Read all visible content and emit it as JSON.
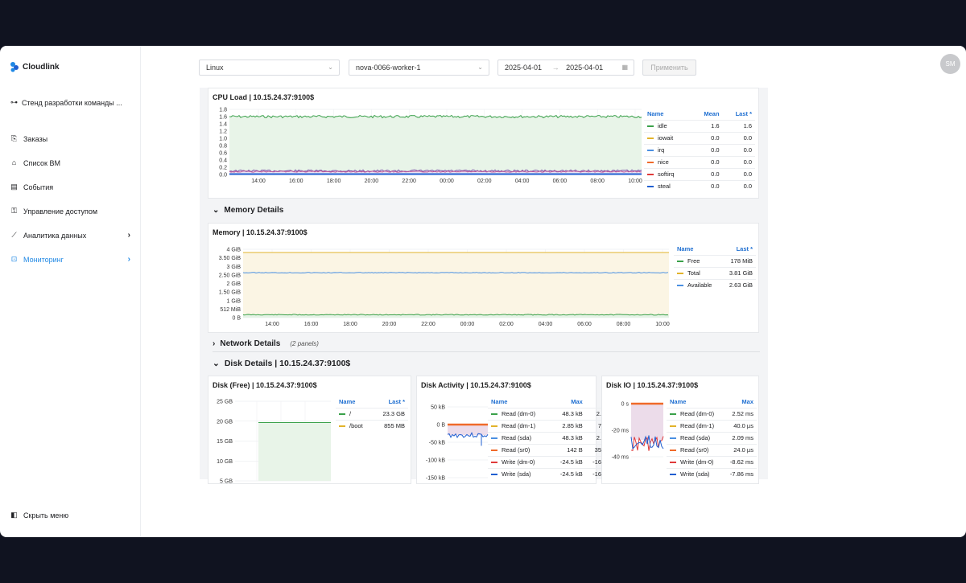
{
  "brand": {
    "name": "Cloudlink"
  },
  "project": {
    "name": "Стенд разработки команды ..."
  },
  "nav": [
    {
      "label": "Заказы",
      "icon": "orders-icon"
    },
    {
      "label": "Список ВМ",
      "icon": "vm-list-icon"
    },
    {
      "label": "События",
      "icon": "events-icon"
    },
    {
      "label": "Управление доступом",
      "icon": "access-icon"
    },
    {
      "label": "Аналитика данных",
      "icon": "analytics-icon",
      "chevron": "›"
    },
    {
      "label": "Мониторинг",
      "icon": "monitoring-icon",
      "chevron": "›",
      "active": true
    }
  ],
  "hide_menu": "Скрыть меню",
  "user": {
    "initials": "SM"
  },
  "filters": {
    "os": "Linux",
    "host": "nova-0066-worker-1",
    "date_from": "2025-04-01",
    "date_arrow": "→",
    "date_to": "2025-04-01",
    "apply": "Применить"
  },
  "x_ticks": [
    "14:00",
    "16:00",
    "18:00",
    "20:00",
    "22:00",
    "00:00",
    "02:00",
    "04:00",
    "06:00",
    "08:00",
    "10:00"
  ],
  "cpu": {
    "title": "CPU Load | 10.15.24.37:9100$",
    "headers": [
      "Name",
      "Mean",
      "Last *"
    ],
    "rows": [
      {
        "name": "idle",
        "mean": "1.6",
        "last": "1.6",
        "color": "#3aa14a"
      },
      {
        "name": "iowait",
        "mean": "0.0",
        "last": "0.0",
        "color": "#e2b32b"
      },
      {
        "name": "irq",
        "mean": "0.0",
        "last": "0.0",
        "color": "#4a90e2"
      },
      {
        "name": "nice",
        "mean": "0.0",
        "last": "0.0",
        "color": "#f06a2a"
      },
      {
        "name": "softirq",
        "mean": "0.0",
        "last": "0.0",
        "color": "#e03a3a"
      },
      {
        "name": "steal",
        "mean": "0.0",
        "last": "0.0",
        "color": "#1f5fd1"
      }
    ],
    "y_ticks": [
      "1.8",
      "1.6",
      "1.4",
      "1.2",
      "1.0",
      "0.8",
      "0.6",
      "0.4",
      "0.2",
      "0.0"
    ]
  },
  "memory_section": {
    "chevron": "⌄",
    "title": "Memory Details"
  },
  "memory": {
    "title": "Memory | 10.15.24.37:9100$",
    "headers": [
      "Name",
      "Last *"
    ],
    "rows": [
      {
        "name": "Free",
        "last": "178 MiB",
        "color": "#3aa14a"
      },
      {
        "name": "Total",
        "last": "3.81 GiB",
        "color": "#e2b32b"
      },
      {
        "name": "Available",
        "last": "2.63 GiB",
        "color": "#4a90e2"
      }
    ],
    "y_ticks": [
      "4 GiB",
      "3.50 GiB",
      "3 GiB",
      "2.50 GiB",
      "2 GiB",
      "1.50 GiB",
      "1 GiB",
      "512 MiB",
      "0 B"
    ]
  },
  "network_section": {
    "chevron": "›",
    "title": "Network Details",
    "subtitle": "(2 panels)"
  },
  "disk_section": {
    "chevron": "⌄",
    "title": "Disk Details | 10.15.24.37:9100$"
  },
  "disk_free": {
    "title": "Disk (Free) | 10.15.24.37:9100$",
    "headers": [
      "Name",
      "Last *"
    ],
    "rows": [
      {
        "name": "/",
        "last": "23.3 GB",
        "color": "#3aa14a"
      },
      {
        "name": "/boot",
        "last": "855 MB",
        "color": "#e2b32b"
      }
    ],
    "y_ticks": [
      "25 GB",
      "20 GB",
      "15 GB",
      "10 GB",
      "5 GB"
    ]
  },
  "disk_activity": {
    "title": "Disk Activity | 10.15.24.37:9100$",
    "headers": [
      "Name",
      "Max",
      ""
    ],
    "rows": [
      {
        "name": "Read (dm-0)",
        "max": "48.3 kB",
        "extra": "2.",
        "color": "#3aa14a"
      },
      {
        "name": "Read (dm-1)",
        "max": "2.85 kB",
        "extra": "7",
        "color": "#e2b32b"
      },
      {
        "name": "Read (sda)",
        "max": "48.3 kB",
        "extra": "2.",
        "color": "#4a90e2"
      },
      {
        "name": "Read (sr0)",
        "max": "142 B",
        "extra": "35",
        "color": "#f06a2a"
      },
      {
        "name": "Write (dm-0)",
        "max": "-24.5 kB",
        "extra": "-16",
        "color": "#e03a3a"
      },
      {
        "name": "Write (sda)",
        "max": "-24.5 kB",
        "extra": "-16",
        "color": "#1f5fd1"
      }
    ],
    "y_ticks": [
      "50 kB",
      "0 B",
      "-50 kB",
      "-100 kB",
      "-150 kB"
    ]
  },
  "disk_io": {
    "title": "Disk IO | 10.15.24.37:9100$",
    "headers": [
      "Name",
      "Max"
    ],
    "rows": [
      {
        "name": "Read (dm-0)",
        "max": "2.52 ms",
        "color": "#3aa14a"
      },
      {
        "name": "Read (dm-1)",
        "max": "40.0 µs",
        "color": "#e2b32b"
      },
      {
        "name": "Read (sda)",
        "max": "2.09 ms",
        "color": "#4a90e2"
      },
      {
        "name": "Read (sr0)",
        "max": "24.0 µs",
        "color": "#f06a2a"
      },
      {
        "name": "Write (dm-0)",
        "max": "-8.62 ms",
        "color": "#e03a3a"
      },
      {
        "name": "Write (sda)",
        "max": "-7.86 ms",
        "color": "#1f5fd1"
      }
    ],
    "y_ticks": [
      "0 s",
      "-20 ms",
      "-40 ms"
    ]
  }
}
